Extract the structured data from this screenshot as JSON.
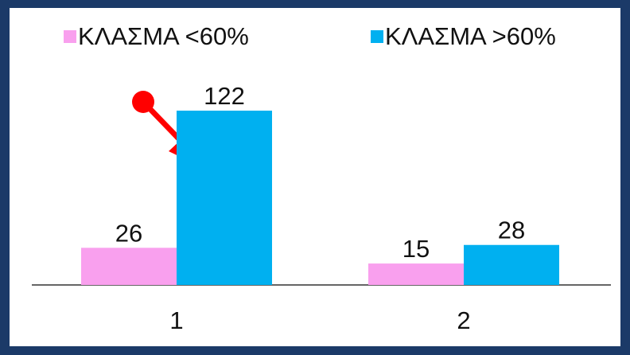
{
  "chart_data": {
    "type": "bar",
    "categories": [
      "1",
      "2"
    ],
    "series": [
      {
        "name": "ΚΛΑΣΜΑ <60%",
        "color": "#f9a0ee",
        "values": [
          26,
          15
        ]
      },
      {
        "name": "ΚΛΑΣΜΑ >60%",
        "color": "#00b0f0",
        "values": [
          122,
          28
        ]
      }
    ],
    "legend": "top"
  }
}
